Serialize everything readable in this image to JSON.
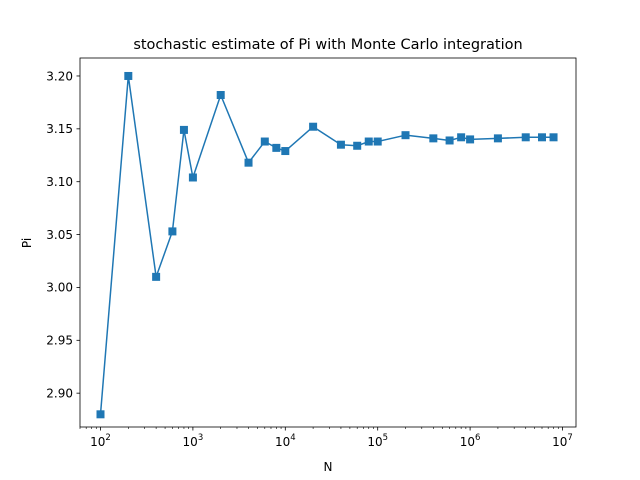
{
  "chart_data": {
    "type": "line",
    "title": "stochastic estimate of Pi with Monte Carlo integration",
    "xlabel": "N",
    "ylabel": "Pi",
    "xscale": "log",
    "xlim": [
      60,
      14000000
    ],
    "ylim": [
      2.868,
      3.217
    ],
    "grid": false,
    "marker": "square",
    "color": "#1f77b4",
    "x_ticks": [
      {
        "value": 100,
        "base": "10",
        "exp": "2"
      },
      {
        "value": 1000,
        "base": "10",
        "exp": "3"
      },
      {
        "value": 10000,
        "base": "10",
        "exp": "4"
      },
      {
        "value": 100000,
        "base": "10",
        "exp": "5"
      },
      {
        "value": 1000000,
        "base": "10",
        "exp": "6"
      },
      {
        "value": 10000000,
        "base": "10",
        "exp": "7"
      }
    ],
    "y_ticks": [
      "2.90",
      "2.95",
      "3.00",
      "3.05",
      "3.10",
      "3.15",
      "3.20"
    ],
    "series": [
      {
        "x": [
          100,
          200,
          400,
          600,
          800,
          1000,
          2000,
          4000,
          6000,
          8000,
          10000,
          20000,
          40000,
          60000,
          80000,
          100000,
          200000,
          400000,
          600000,
          800000,
          1000000,
          2000000,
          4000000,
          6000000,
          8000000
        ],
        "y": [
          2.88,
          3.2,
          3.01,
          3.053,
          3.149,
          3.104,
          3.182,
          3.118,
          3.138,
          3.132,
          3.129,
          3.152,
          3.135,
          3.134,
          3.138,
          3.138,
          3.144,
          3.141,
          3.139,
          3.142,
          3.14,
          3.141,
          3.142,
          3.142,
          3.142
        ]
      }
    ]
  }
}
